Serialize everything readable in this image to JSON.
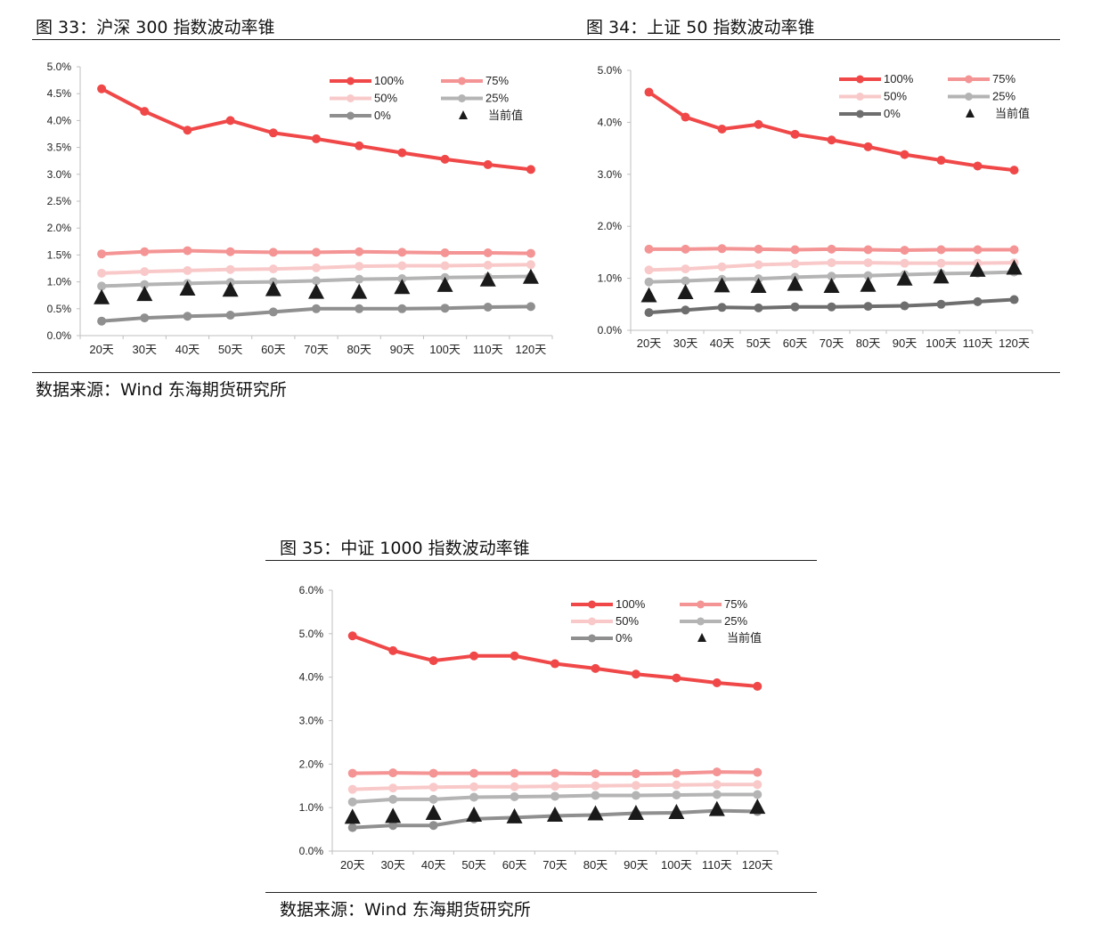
{
  "figures": [
    {
      "title": "图 33：沪深 300 指数波动率锥",
      "source": "数据来源：Wind   东海期货研究所"
    },
    {
      "title": "图 34：上证 50 指数波动率锥"
    },
    {
      "title": "图 35：中证 1000 指数波动率锥",
      "source": "数据来源：Wind   东海期货研究所"
    }
  ],
  "colors": {
    "p100": "#f04848",
    "p75": "#f49494",
    "p50": "#f9c9c9",
    "p25": "#b4b4b4",
    "p0": "#8f8f8f",
    "p0_dark": "#6e6e6e",
    "current": "#1a1a1a"
  },
  "chart_data": [
    {
      "type": "line",
      "categories": [
        "20天",
        "30天",
        "40天",
        "50天",
        "60天",
        "70天",
        "80天",
        "90天",
        "100天",
        "110天",
        "120天"
      ],
      "ylim": [
        0,
        5.0
      ],
      "yticks": [
        0,
        0.5,
        1.0,
        1.5,
        2.0,
        2.5,
        3.0,
        3.5,
        4.0,
        4.5,
        5.0
      ],
      "ytick_labels": [
        "0.0%",
        "0.5%",
        "1.0%",
        "1.5%",
        "2.0%",
        "2.5%",
        "3.0%",
        "3.5%",
        "4.0%",
        "4.5%",
        "5.0%"
      ],
      "series": [
        {
          "name": "100%",
          "values": [
            4.59,
            4.17,
            3.82,
            4.0,
            3.77,
            3.66,
            3.53,
            3.4,
            3.28,
            3.18,
            3.09
          ]
        },
        {
          "name": "75%",
          "values": [
            1.52,
            1.56,
            1.58,
            1.56,
            1.55,
            1.55,
            1.56,
            1.55,
            1.54,
            1.54,
            1.53
          ]
        },
        {
          "name": "50%",
          "values": [
            1.16,
            1.19,
            1.21,
            1.23,
            1.24,
            1.26,
            1.29,
            1.3,
            1.3,
            1.31,
            1.32
          ]
        },
        {
          "name": "25%",
          "values": [
            0.92,
            0.95,
            0.97,
            0.99,
            1.0,
            1.02,
            1.05,
            1.06,
            1.08,
            1.09,
            1.1
          ]
        },
        {
          "name": "0%",
          "values": [
            0.27,
            0.33,
            0.36,
            0.38,
            0.44,
            0.5,
            0.5,
            0.5,
            0.51,
            0.53,
            0.54
          ]
        },
        {
          "name": "当前值",
          "values": [
            0.7,
            0.76,
            0.86,
            0.84,
            0.85,
            0.8,
            0.8,
            0.89,
            0.93,
            1.03,
            1.08
          ]
        }
      ]
    },
    {
      "type": "line",
      "categories": [
        "20天",
        "30天",
        "40天",
        "50天",
        "60天",
        "70天",
        "80天",
        "90天",
        "100天",
        "110天",
        "120天"
      ],
      "ylim": [
        0,
        5.0
      ],
      "yticks": [
        0,
        1.0,
        2.0,
        3.0,
        4.0,
        5.0
      ],
      "ytick_labels": [
        "0.0%",
        "1.0%",
        "2.0%",
        "3.0%",
        "4.0%",
        "5.0%"
      ],
      "series": [
        {
          "name": "100%",
          "values": [
            4.58,
            4.1,
            3.87,
            3.96,
            3.77,
            3.66,
            3.53,
            3.38,
            3.27,
            3.16,
            3.08
          ]
        },
        {
          "name": "75%",
          "values": [
            1.56,
            1.56,
            1.57,
            1.56,
            1.55,
            1.56,
            1.55,
            1.54,
            1.55,
            1.55,
            1.55
          ]
        },
        {
          "name": "50%",
          "values": [
            1.16,
            1.18,
            1.22,
            1.26,
            1.28,
            1.3,
            1.3,
            1.29,
            1.29,
            1.29,
            1.3
          ]
        },
        {
          "name": "25%",
          "values": [
            0.93,
            0.95,
            0.98,
            0.99,
            1.02,
            1.04,
            1.05,
            1.07,
            1.09,
            1.1,
            1.12
          ]
        },
        {
          "name": "0%",
          "values": [
            0.34,
            0.39,
            0.44,
            0.43,
            0.45,
            0.45,
            0.46,
            0.47,
            0.5,
            0.55,
            0.59
          ]
        },
        {
          "name": "当前值",
          "values": [
            0.66,
            0.72,
            0.85,
            0.84,
            0.88,
            0.84,
            0.86,
            0.98,
            1.02,
            1.15,
            1.19
          ]
        }
      ]
    },
    {
      "type": "line",
      "categories": [
        "20天",
        "30天",
        "40天",
        "50天",
        "60天",
        "70天",
        "80天",
        "90天",
        "100天",
        "110天",
        "120天"
      ],
      "ylim": [
        0,
        6.0
      ],
      "yticks": [
        0,
        1.0,
        2.0,
        3.0,
        4.0,
        5.0,
        6.0
      ],
      "ytick_labels": [
        "0.0%",
        "1.0%",
        "2.0%",
        "3.0%",
        "4.0%",
        "5.0%",
        "6.0%"
      ],
      "series": [
        {
          "name": "100%",
          "values": [
            4.95,
            4.61,
            4.38,
            4.49,
            4.49,
            4.31,
            4.2,
            4.07,
            3.98,
            3.87,
            3.79
          ]
        },
        {
          "name": "75%",
          "values": [
            1.79,
            1.8,
            1.79,
            1.79,
            1.79,
            1.79,
            1.78,
            1.78,
            1.79,
            1.82,
            1.81
          ]
        },
        {
          "name": "50%",
          "values": [
            1.42,
            1.45,
            1.47,
            1.48,
            1.48,
            1.49,
            1.5,
            1.51,
            1.52,
            1.53,
            1.53
          ]
        },
        {
          "name": "25%",
          "values": [
            1.13,
            1.19,
            1.19,
            1.24,
            1.25,
            1.26,
            1.28,
            1.28,
            1.29,
            1.3,
            1.3
          ]
        },
        {
          "name": "0%",
          "values": [
            0.54,
            0.59,
            0.59,
            0.74,
            0.77,
            0.81,
            0.83,
            0.87,
            0.88,
            0.93,
            0.91
          ]
        },
        {
          "name": "当前值",
          "values": [
            0.77,
            0.79,
            0.86,
            0.82,
            0.78,
            0.82,
            0.85,
            0.86,
            0.88,
            0.95,
            1.0
          ]
        }
      ]
    }
  ]
}
